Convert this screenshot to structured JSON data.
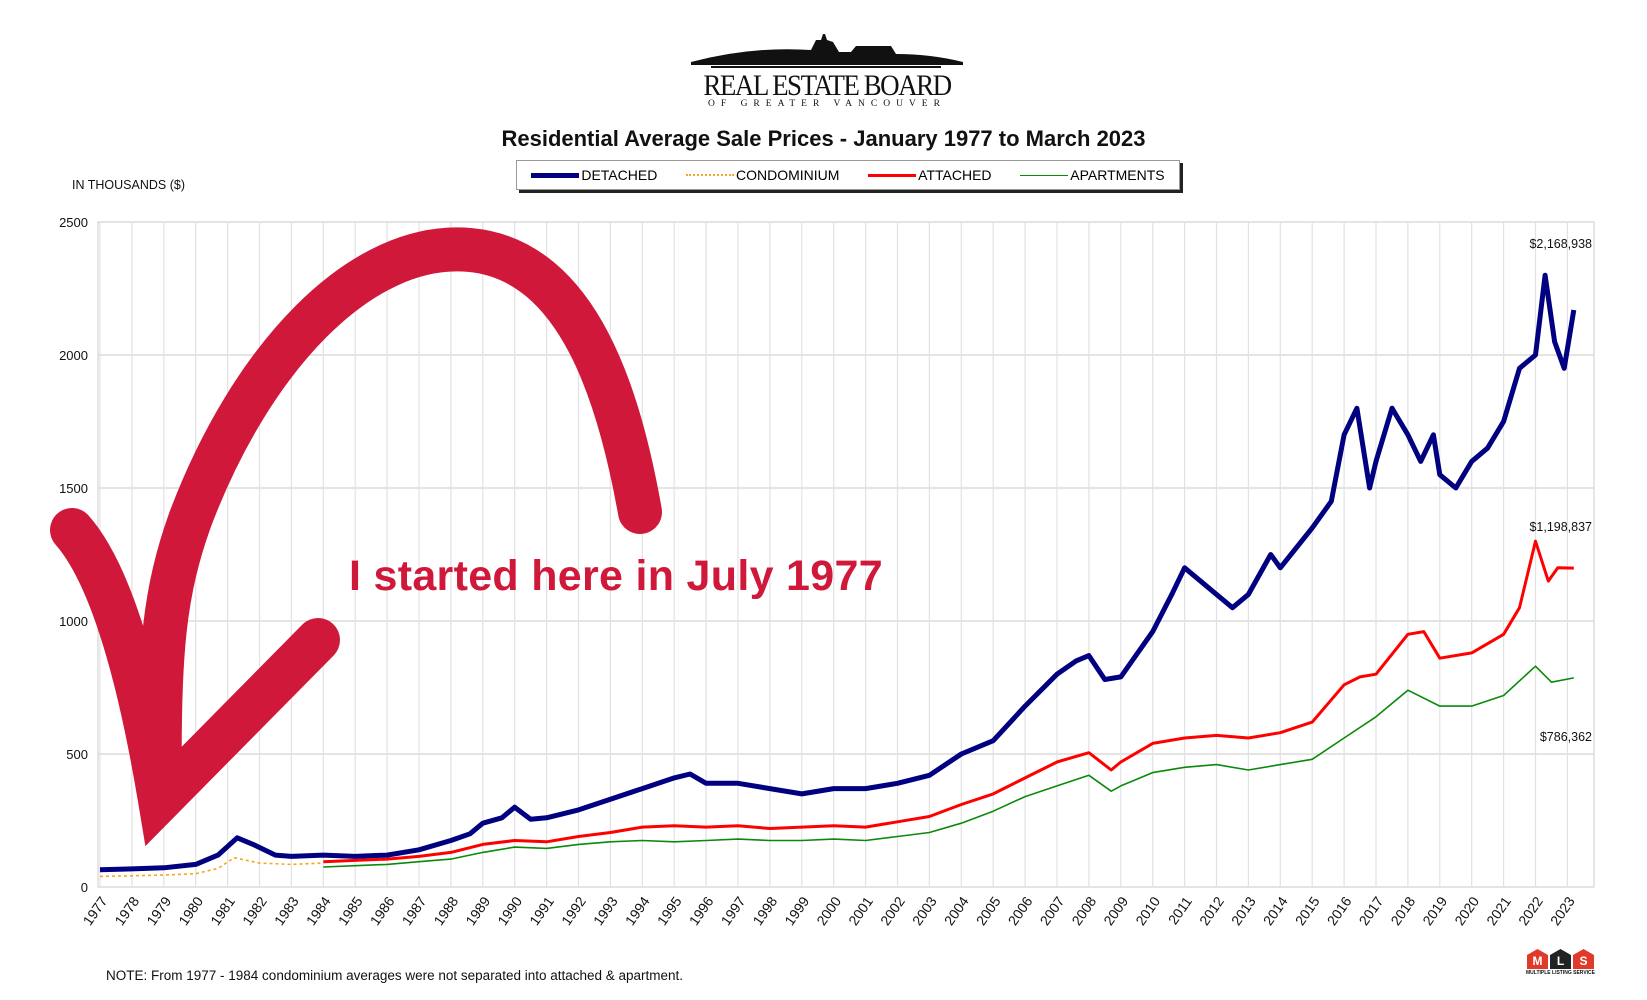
{
  "logo": {
    "name": "REAL ESTATE BOARD",
    "subtitle": "OF GREATER VANCOUVER"
  },
  "mls_logo": {
    "letters": [
      "M",
      "L",
      "S"
    ],
    "caption": "MULTIPLE LISTING SERVICE"
  },
  "annotation": {
    "text": "I started here in July 1977",
    "color": "#d0193a"
  },
  "note": "NOTE:  From 1977 - 1984 condominium averages were not separated into attached & apartment.",
  "chart_data": {
    "type": "line",
    "title": "Residential Average Sale Prices  -  January 1977 to March 2023",
    "ylabel": "IN THOUSANDS ($)",
    "xlabel": "",
    "xlim": [
      1977,
      2023.25
    ],
    "ylim": [
      0,
      2500
    ],
    "yticks": [
      0,
      500,
      1000,
      1500,
      2000,
      2500
    ],
    "xticks": [
      1977,
      1978,
      1979,
      1980,
      1981,
      1982,
      1983,
      1984,
      1985,
      1986,
      1987,
      1988,
      1989,
      1990,
      1991,
      1992,
      1993,
      1994,
      1995,
      1996,
      1997,
      1998,
      1999,
      2000,
      2001,
      2002,
      2003,
      2004,
      2005,
      2006,
      2007,
      2008,
      2009,
      2010,
      2011,
      2012,
      2013,
      2014,
      2015,
      2016,
      2017,
      2018,
      2019,
      2020,
      2021,
      2022,
      2023
    ],
    "grid": true,
    "legend_position": "top-center",
    "series": [
      {
        "name": "DETACHED",
        "color": "#000080",
        "style": "solid-thick",
        "x": [
          1977,
          1978,
          1979,
          1980,
          1980.7,
          1981.3,
          1981.8,
          1982.5,
          1983,
          1984,
          1985,
          1986,
          1987,
          1988,
          1988.6,
          1989,
          1989.6,
          1990,
          1990.5,
          1991,
          1992,
          1993,
          1994,
          1995,
          1995.5,
          1996,
          1997,
          1998,
          1999,
          2000,
          2001,
          2002,
          2003,
          2004,
          2005,
          2006,
          2007,
          2007.6,
          2008,
          2008.5,
          2009,
          2010,
          2010.6,
          2011,
          2011.5,
          2012,
          2012.5,
          2013,
          2013.7,
          2014,
          2015,
          2015.6,
          2016,
          2016.4,
          2016.8,
          2017,
          2017.5,
          2018,
          2018.4,
          2018.8,
          2019,
          2019.5,
          2020,
          2020.5,
          2021,
          2021.5,
          2022,
          2022.3,
          2022.6,
          2022.9,
          2023.2
        ],
        "y": [
          65,
          68,
          72,
          85,
          120,
          185,
          160,
          120,
          115,
          120,
          115,
          120,
          140,
          175,
          200,
          240,
          260,
          300,
          255,
          260,
          290,
          330,
          370,
          410,
          425,
          390,
          390,
          370,
          350,
          370,
          370,
          390,
          420,
          500,
          550,
          680,
          800,
          850,
          870,
          780,
          790,
          960,
          1100,
          1200,
          1150,
          1100,
          1050,
          1100,
          1250,
          1200,
          1350,
          1450,
          1700,
          1800,
          1500,
          1600,
          1800,
          1700,
          1600,
          1700,
          1550,
          1500,
          1600,
          1650,
          1750,
          1950,
          2000,
          2300,
          2050,
          1950,
          2169
        ]
      },
      {
        "name": "CONDOMINIUM",
        "color": "#f5a623",
        "style": "dotted",
        "x": [
          1977,
          1978,
          1979,
          1980,
          1980.7,
          1981.2,
          1982,
          1983,
          1984
        ],
        "y": [
          40,
          42,
          45,
          50,
          70,
          110,
          90,
          85,
          90
        ]
      },
      {
        "name": "ATTACHED",
        "color": "#ff0000",
        "style": "solid",
        "x": [
          1984,
          1985,
          1986,
          1987,
          1988,
          1989,
          1990,
          1991,
          1992,
          1993,
          1994,
          1995,
          1996,
          1997,
          1998,
          1999,
          2000,
          2001,
          2002,
          2003,
          2004,
          2005,
          2006,
          2007,
          2008,
          2008.7,
          2009,
          2010,
          2011,
          2012,
          2013,
          2014,
          2015,
          2016,
          2016.5,
          2017,
          2018,
          2018.5,
          2019,
          2020,
          2021,
          2021.5,
          2022,
          2022.4,
          2022.7,
          2023.2
        ],
        "y": [
          95,
          100,
          105,
          115,
          130,
          160,
          175,
          170,
          190,
          205,
          225,
          230,
          225,
          230,
          220,
          225,
          230,
          225,
          245,
          265,
          310,
          350,
          410,
          470,
          505,
          440,
          470,
          540,
          560,
          570,
          560,
          580,
          620,
          760,
          790,
          800,
          950,
          960,
          860,
          880,
          950,
          1050,
          1300,
          1150,
          1200,
          1199
        ]
      },
      {
        "name": "APARTMENTS",
        "color": "#0a8a0a",
        "style": "solid-thin",
        "x": [
          1984,
          1985,
          1986,
          1987,
          1988,
          1989,
          1990,
          1991,
          1992,
          1993,
          1994,
          1995,
          1996,
          1997,
          1998,
          1999,
          2000,
          2001,
          2002,
          2003,
          2004,
          2005,
          2006,
          2007,
          2008,
          2008.7,
          2009,
          2010,
          2011,
          2012,
          2013,
          2014,
          2015,
          2016,
          2017,
          2018,
          2019,
          2020,
          2021,
          2022,
          2022.5,
          2023.2
        ],
        "y": [
          75,
          80,
          85,
          95,
          105,
          130,
          150,
          145,
          160,
          170,
          175,
          170,
          175,
          180,
          175,
          175,
          180,
          175,
          190,
          205,
          240,
          285,
          340,
          380,
          420,
          360,
          380,
          430,
          450,
          460,
          440,
          460,
          480,
          560,
          640,
          740,
          680,
          680,
          720,
          830,
          770,
          786
        ]
      }
    ],
    "end_labels": [
      {
        "series": "DETACHED",
        "text": "$2,168,938"
      },
      {
        "series": "ATTACHED",
        "text": "$1,198,837"
      },
      {
        "series": "APARTMENTS",
        "text": "$786,362"
      }
    ]
  }
}
